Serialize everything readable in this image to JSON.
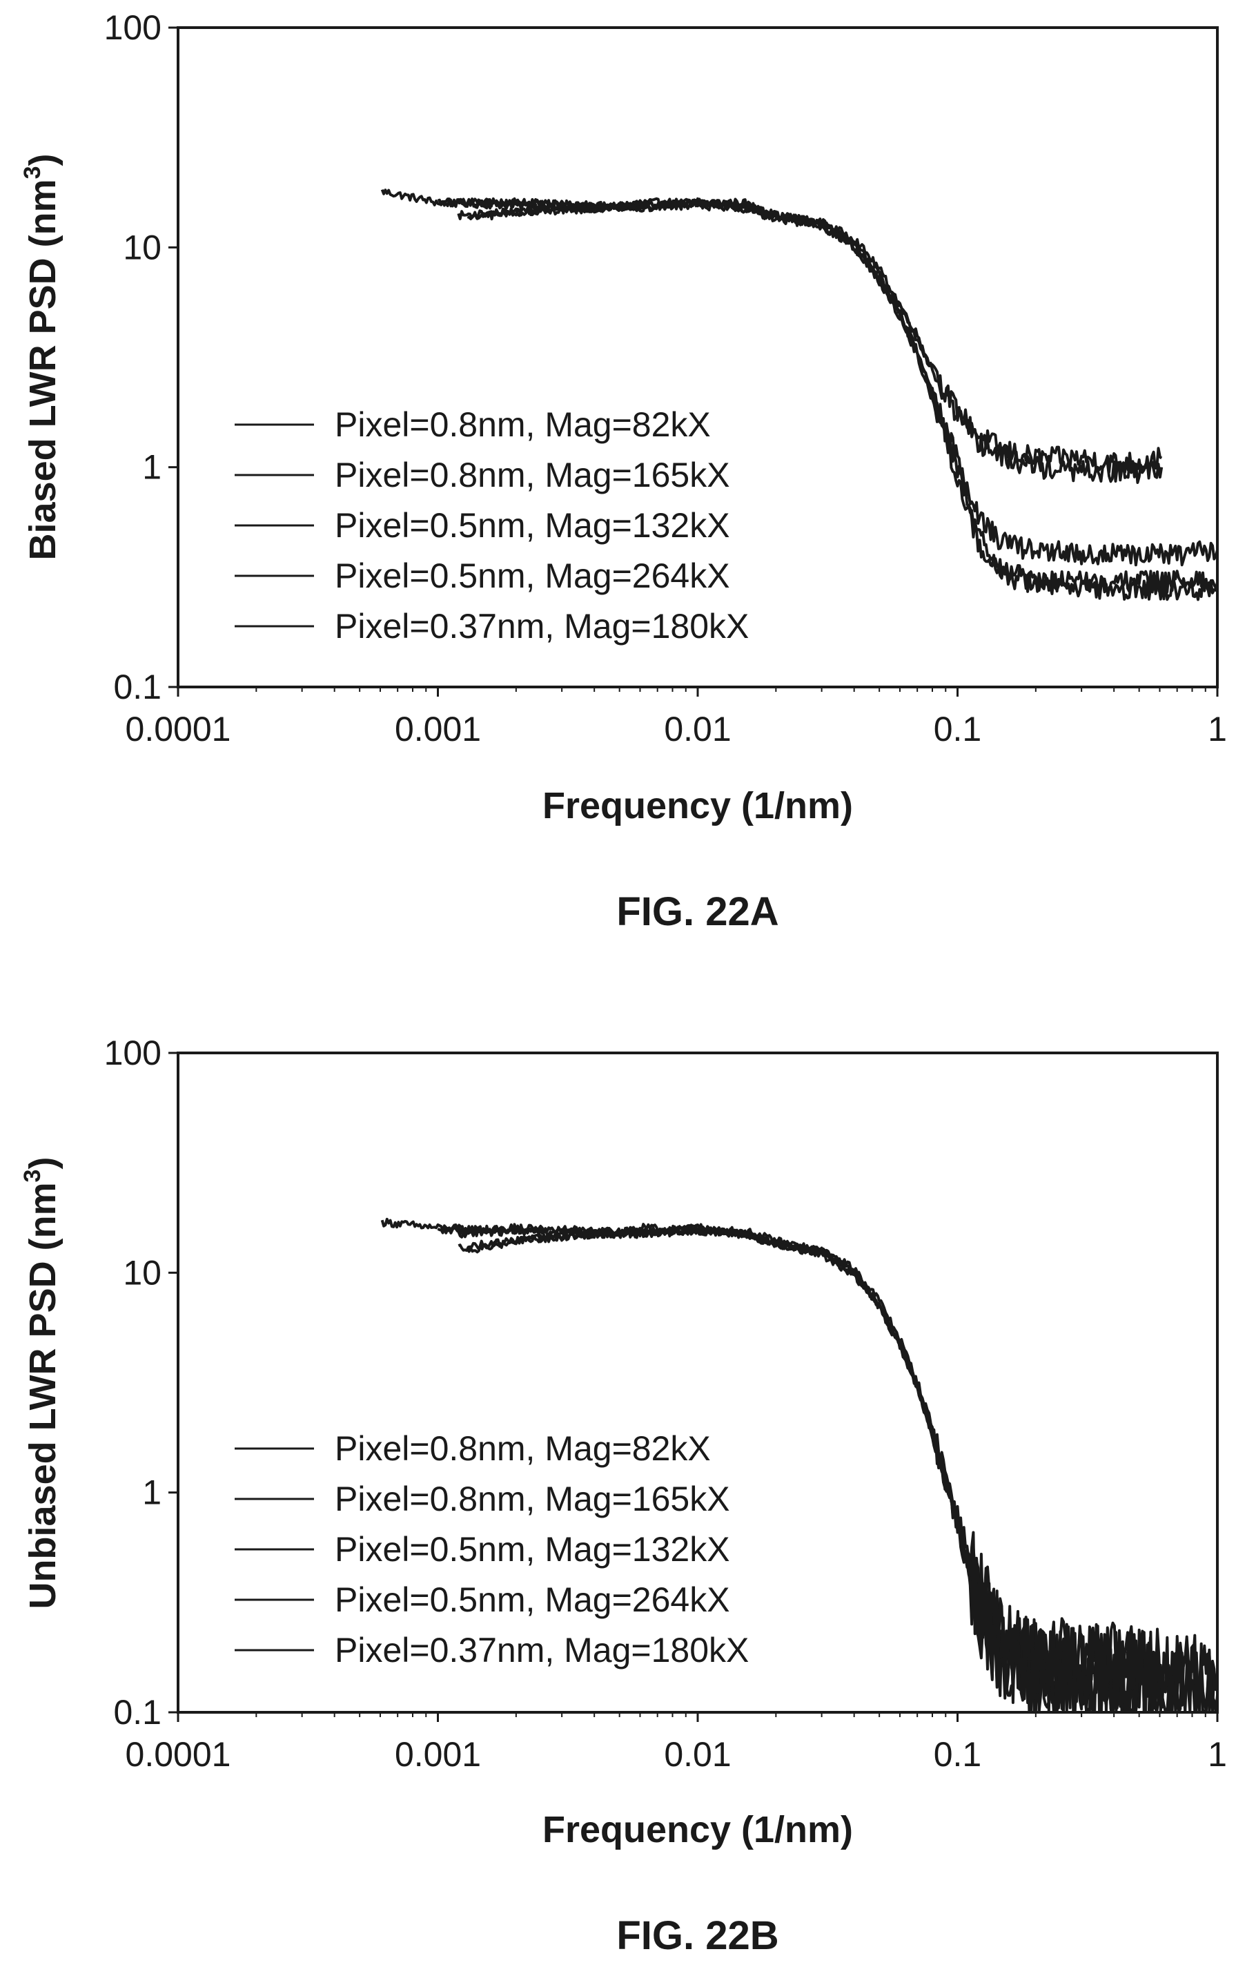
{
  "chart_data": [
    {
      "type": "line",
      "caption": "FIG. 22A",
      "xlabel": "Frequency (1/nm)",
      "ylabel": "Biased LWR PSD (nm",
      "ylabel_sup": "3",
      "ylabel_end": ")",
      "xscale": "log",
      "yscale": "log",
      "xlim": [
        0.0001,
        1
      ],
      "ylim": [
        0.1,
        100
      ],
      "xticks": [
        0.0001,
        0.001,
        0.01,
        0.1,
        1
      ],
      "xtick_labels": [
        "0.0001",
        "0.001",
        "0.01",
        "0.1",
        "1"
      ],
      "yticks": [
        0.1,
        1,
        10,
        100
      ],
      "ytick_labels": [
        "0.1",
        "1",
        "10",
        "100"
      ],
      "grid": false,
      "legend_position": "bottom-left",
      "color": "#1a1a1a",
      "series": [
        {
          "name": "Pixel=0.8nm, Mag=82kX",
          "x": [
            0.00061,
            0.001,
            0.002,
            0.004,
            0.006,
            0.01,
            0.015,
            0.02,
            0.03,
            0.04,
            0.05,
            0.06,
            0.07,
            0.08,
            0.1,
            0.12,
            0.15,
            0.2,
            0.3,
            0.4,
            0.5,
            0.61
          ],
          "y": [
            18,
            16,
            15.5,
            15,
            16,
            16,
            16,
            14,
            13,
            11,
            8,
            5.5,
            4,
            2.8,
            1.8,
            1.4,
            1.2,
            1.1,
            1.1,
            1.05,
            1.05,
            1.1
          ]
        },
        {
          "name": "Pixel=0.8nm, Mag=165kX",
          "x": [
            0.0012,
            0.002,
            0.004,
            0.006,
            0.01,
            0.015,
            0.02,
            0.03,
            0.04,
            0.05,
            0.06,
            0.07,
            0.08,
            0.1,
            0.12,
            0.15,
            0.2,
            0.3,
            0.4,
            0.5,
            0.61
          ],
          "y": [
            14,
            14.5,
            15,
            15.5,
            16,
            15.5,
            14,
            13,
            10.5,
            7.5,
            5.3,
            3.8,
            2.7,
            1.7,
            1.3,
            1.1,
            1.0,
            0.95,
            0.95,
            0.95,
            1.0
          ]
        },
        {
          "name": "Pixel=0.5nm, Mag=132kX",
          "x": [
            0.001,
            0.002,
            0.004,
            0.006,
            0.01,
            0.015,
            0.02,
            0.03,
            0.04,
            0.05,
            0.06,
            0.07,
            0.08,
            0.1,
            0.12,
            0.15,
            0.2,
            0.3,
            0.5,
            0.7,
            1.0
          ],
          "y": [
            16,
            16,
            15.5,
            15.5,
            16,
            15.5,
            14,
            13,
            10.5,
            7.5,
            5,
            3.4,
            2.2,
            1.1,
            0.6,
            0.45,
            0.42,
            0.4,
            0.4,
            0.4,
            0.42
          ]
        },
        {
          "name": "Pixel=0.5nm, Mag=264kX",
          "x": [
            0.0013,
            0.002,
            0.004,
            0.006,
            0.01,
            0.015,
            0.02,
            0.03,
            0.04,
            0.05,
            0.06,
            0.07,
            0.08,
            0.1,
            0.12,
            0.15,
            0.2,
            0.3,
            0.5,
            0.7,
            1.0
          ],
          "y": [
            13.5,
            14.5,
            15,
            15.5,
            15.5,
            15,
            13.5,
            12.5,
            10,
            7,
            4.8,
            3.2,
            2,
            0.9,
            0.45,
            0.32,
            0.3,
            0.3,
            0.3,
            0.3,
            0.3
          ]
        },
        {
          "name": "Pixel=0.37nm, Mag=180kX",
          "x": [
            0.0012,
            0.002,
            0.004,
            0.006,
            0.01,
            0.015,
            0.02,
            0.03,
            0.04,
            0.05,
            0.06,
            0.07,
            0.08,
            0.1,
            0.12,
            0.15,
            0.2,
            0.3,
            0.5,
            0.7,
            1.0
          ],
          "y": [
            16,
            16,
            15.5,
            15,
            16,
            15,
            13.5,
            12.5,
            10,
            7.2,
            4.9,
            3.3,
            2.1,
            1.0,
            0.5,
            0.34,
            0.3,
            0.28,
            0.28,
            0.28,
            0.28
          ]
        }
      ]
    },
    {
      "type": "line",
      "caption": "FIG. 22B",
      "xlabel": "Frequency (1/nm)",
      "ylabel": "Unbiased LWR PSD (nm",
      "ylabel_sup": "3",
      "ylabel_end": ")",
      "xscale": "log",
      "yscale": "log",
      "xlim": [
        0.0001,
        1
      ],
      "ylim": [
        0.1,
        100
      ],
      "xticks": [
        0.0001,
        0.001,
        0.01,
        0.1,
        1
      ],
      "xtick_labels": [
        "0.0001",
        "0.001",
        "0.01",
        "0.1",
        "1"
      ],
      "yticks": [
        0.1,
        1,
        10,
        100
      ],
      "ytick_labels": [
        "0.1",
        "1",
        "10",
        "100"
      ],
      "grid": false,
      "legend_position": "bottom-left",
      "color": "#1a1a1a",
      "series": [
        {
          "name": "Pixel=0.8nm, Mag=82kX",
          "x": [
            0.00061,
            0.001,
            0.002,
            0.004,
            0.006,
            0.01,
            0.015,
            0.02,
            0.03,
            0.04,
            0.05,
            0.06,
            0.07,
            0.08,
            0.1,
            0.12,
            0.15,
            0.2,
            0.3,
            0.4,
            0.5,
            0.61
          ],
          "y": [
            17,
            16,
            15.5,
            15,
            16,
            15.5,
            15.5,
            14,
            12.5,
            10.5,
            7.5,
            5,
            3.2,
            2.0,
            0.8,
            0.35,
            0.2,
            0.16,
            0.15,
            0.15,
            0.15,
            0.15
          ]
        },
        {
          "name": "Pixel=0.8nm, Mag=165kX",
          "x": [
            0.0012,
            0.002,
            0.004,
            0.006,
            0.01,
            0.015,
            0.02,
            0.03,
            0.04,
            0.05,
            0.06,
            0.07,
            0.08,
            0.1,
            0.12,
            0.15,
            0.2,
            0.3,
            0.4,
            0.5,
            0.61
          ],
          "y": [
            13,
            14,
            15,
            15.5,
            15.5,
            15,
            13.5,
            12.5,
            10,
            7,
            4.8,
            3,
            1.8,
            0.7,
            0.3,
            0.18,
            0.15,
            0.14,
            0.14,
            0.14,
            0.14
          ]
        },
        {
          "name": "Pixel=0.5nm, Mag=132kX",
          "x": [
            0.001,
            0.002,
            0.004,
            0.006,
            0.01,
            0.015,
            0.02,
            0.03,
            0.04,
            0.05,
            0.06,
            0.07,
            0.08,
            0.1,
            0.12,
            0.15,
            0.2,
            0.3,
            0.5,
            0.7,
            1.0
          ],
          "y": [
            15.5,
            16,
            15.5,
            15.5,
            16,
            15,
            13.5,
            12.5,
            10,
            7.2,
            4.8,
            3.1,
            1.9,
            0.75,
            0.32,
            0.2,
            0.17,
            0.16,
            0.15,
            0.14,
            0.13
          ]
        },
        {
          "name": "Pixel=0.5nm, Mag=264kX",
          "x": [
            0.0013,
            0.002,
            0.004,
            0.006,
            0.01,
            0.015,
            0.02,
            0.03,
            0.04,
            0.05,
            0.06,
            0.07,
            0.08,
            0.1,
            0.12,
            0.15,
            0.2,
            0.3,
            0.5,
            0.7,
            1.0
          ],
          "y": [
            12.5,
            14,
            15,
            15,
            15.5,
            15,
            13.5,
            12,
            9.8,
            6.9,
            4.6,
            3,
            1.8,
            0.7,
            0.3,
            0.18,
            0.15,
            0.14,
            0.13,
            0.13,
            0.12
          ]
        },
        {
          "name": "Pixel=0.37nm, Mag=180kX",
          "x": [
            0.0012,
            0.002,
            0.004,
            0.006,
            0.01,
            0.015,
            0.02,
            0.03,
            0.04,
            0.05,
            0.06,
            0.07,
            0.08,
            0.1,
            0.12,
            0.15,
            0.2,
            0.3,
            0.5,
            0.7,
            1.0
          ],
          "y": [
            15,
            15.5,
            15.5,
            15,
            16,
            15,
            13.5,
            12.5,
            10,
            7,
            4.7,
            3,
            1.8,
            0.72,
            0.3,
            0.19,
            0.16,
            0.15,
            0.14,
            0.14,
            0.13
          ]
        }
      ]
    }
  ]
}
